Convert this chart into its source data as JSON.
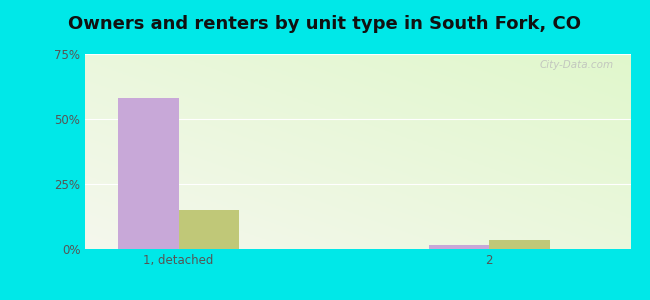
{
  "title": "Owners and renters by unit type in South Fork, CO",
  "categories": [
    "1, detached",
    "2"
  ],
  "owner_values": [
    58,
    1.5
  ],
  "renter_values": [
    15,
    3.5
  ],
  "owner_color": "#c8a8d8",
  "renter_color": "#c0c878",
  "ylim": [
    0,
    75
  ],
  "yticks": [
    0,
    25,
    50,
    75
  ],
  "ytick_labels": [
    "0%",
    "25%",
    "50%",
    "75%"
  ],
  "outer_bg": "#00e8e8",
  "title_fontsize": 13,
  "watermark": "City-Data.com",
  "group_positions": [
    0.45,
    2.1
  ],
  "bar_width": 0.32,
  "xlim": [
    -0.05,
    2.85
  ]
}
